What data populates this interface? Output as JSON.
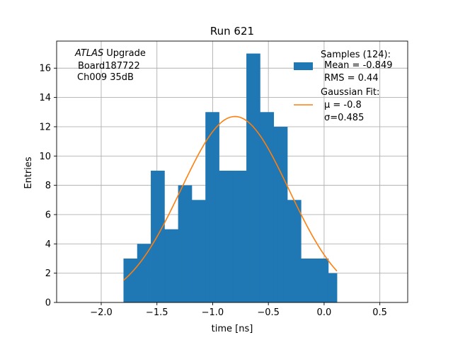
{
  "chart_data": {
    "type": "bar",
    "title": "Run 621",
    "xlabel": "time [ns]",
    "ylabel": "Entries",
    "xlim": [
      -2.4,
      0.75
    ],
    "ylim": [
      0,
      17.85
    ],
    "grid": true,
    "x_ticks": [
      -2.0,
      -1.5,
      -1.0,
      -0.5,
      0.0,
      0.5
    ],
    "x_tick_labels": [
      "−2.0",
      "−1.5",
      "−1.0",
      "−0.5",
      "0.0",
      "0.5"
    ],
    "y_ticks": [
      0,
      2,
      4,
      6,
      8,
      10,
      12,
      14,
      16
    ],
    "y_tick_labels": [
      "0",
      "2",
      "4",
      "6",
      "8",
      "10",
      "12",
      "14",
      "16"
    ],
    "histogram": {
      "color": "#1f77b4",
      "bin_edges": [
        -1.8,
        -1.6775,
        -1.555,
        -1.4325,
        -1.31,
        -1.1875,
        -1.065,
        -0.9425,
        -0.82,
        -0.6975,
        -0.575,
        -0.4525,
        -0.33,
        -0.2075,
        -0.085,
        0.0375,
        0.115
      ],
      "counts": [
        3,
        4,
        9,
        5,
        8,
        7,
        13,
        9,
        9,
        17,
        13,
        12,
        7,
        3,
        3,
        2
      ]
    },
    "fit": {
      "color": "#ff7f0e",
      "amplitude": 12.7,
      "mu": -0.8,
      "sigma": 0.485,
      "x_range": [
        -1.8,
        0.115
      ]
    },
    "legend": {
      "position": "top-right",
      "samples_title": "Samples (124):",
      "samples_mean": "Mean = -0.849",
      "samples_rms": "RMS = 0.44",
      "fit_title": "Gaussian Fit:",
      "fit_mu": "μ = -0.8",
      "fit_sigma": "σ=0.485"
    },
    "annotation": {
      "position": "top-left",
      "experiment": "ATLAS",
      "upgrade": "Upgrade",
      "board": "Board187722",
      "channel": "Ch009 35dB"
    }
  }
}
